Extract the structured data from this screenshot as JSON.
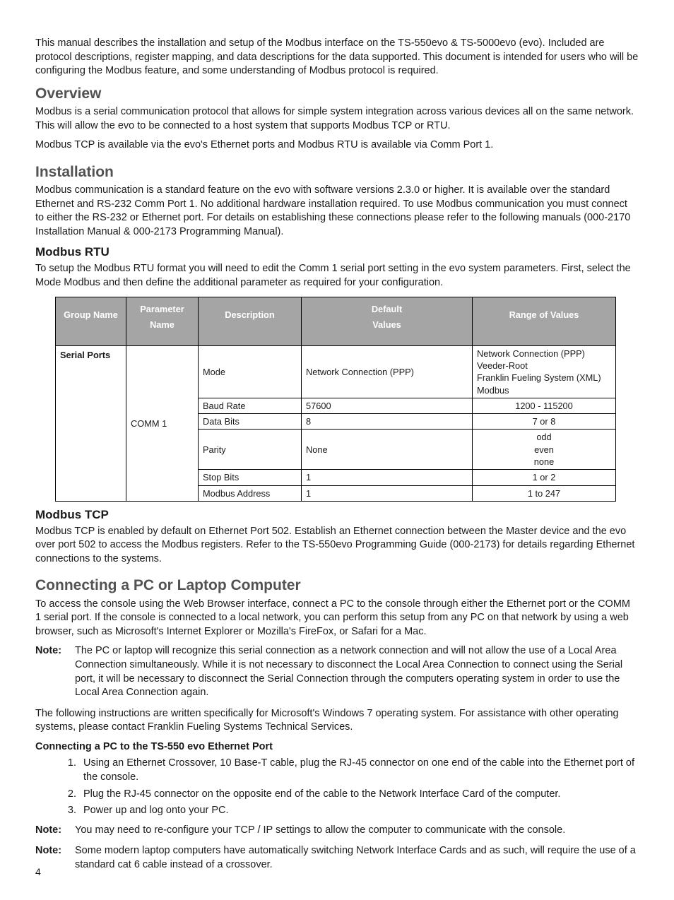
{
  "page_number": "4",
  "intro_para": "This manual describes the installation and setup of the Modbus interface on the TS-550evo & TS-5000evo (evo). Included are protocol descriptions, register mapping, and data descriptions for the data supported. This document is intended for users who will be configuring the Modbus feature, and some understanding of Modbus protocol is required.",
  "overview": {
    "heading": "Overview",
    "p1": "Modbus is a serial communication protocol that allows for simple system integration across various devices all on the same network. This will allow the evo to be connected to a host system that supports Modbus TCP or RTU.",
    "p2": "Modbus TCP is available via the evo's Ethernet ports and Modbus RTU is available via Comm Port 1."
  },
  "installation": {
    "heading": "Installation",
    "p1": "Modbus communication is a standard feature on the evo with software versions 2.3.0 or higher. It is available over the standard Ethernet and RS-232 Comm Port 1. No additional hardware installation required. To use Modbus communication you must connect to either the RS-232 or Ethernet port. For details on establishing these connections please refer to the following manuals (000-2170 Installation Manual & 000-2173 Programming Manual)."
  },
  "rtu": {
    "heading": "Modbus RTU",
    "p1": "To setup the Modbus RTU format you will need to edit the Comm 1 serial port setting in the evo system parameters. First, select the Mode Modbus and then define the additional parameter as required for your configuration."
  },
  "table": {
    "headers": {
      "c0": "Group Name",
      "c1_l1": "Parameter",
      "c1_l2": "Name",
      "c2": "Description",
      "c3_l1": "Default",
      "c3_l2": "Values",
      "c4": "Range of Values"
    },
    "group_name": "Serial Ports",
    "param_name": "COMM 1",
    "rows": {
      "r0": {
        "desc": "Mode",
        "def": "Network Connection (PPP)",
        "range_l1": "Network Connection (PPP)",
        "range_l2": "Veeder-Root",
        "range_l3": "Franklin Fueling System (XML)",
        "range_l4": "Modbus"
      },
      "r1": {
        "desc": "Baud Rate",
        "def": "57600",
        "range": "1200 - 115200"
      },
      "r2": {
        "desc": "Data Bits",
        "def": "8",
        "range": "7 or 8"
      },
      "r3": {
        "desc": "Parity",
        "def": "None",
        "range_l1": "odd",
        "range_l2": "even",
        "range_l3": "none"
      },
      "r4": {
        "desc": "Stop Bits",
        "def": "1",
        "range": "1 or 2"
      },
      "r5": {
        "desc": "Modbus Address",
        "def": "1",
        "range": "1 to 247"
      }
    }
  },
  "tcp": {
    "heading": "Modbus TCP",
    "p1": "Modbus TCP is enabled by default on Ethernet Port 502. Establish an Ethernet connection between the Master device and the evo over port 502 to access the Modbus registers. Refer to the TS-550evo Programming Guide (000-2173) for details regarding Ethernet connections to the systems."
  },
  "connecting": {
    "heading": "Connecting a PC or Laptop Computer",
    "p1": "To access the console using the Web Browser interface, connect a PC to the console through either the Ethernet port or the COMM 1 serial port. If the console is connected to a local network, you can perform this setup from any PC on that network by using a web browser, such as Microsoft's Internet Explorer or Mozilla's FireFox, or Safari for a Mac.",
    "note1_label": "Note:",
    "note1": "The PC or laptop will recognize this serial connection as a network connection and will not allow the use of a Local Area Connection simultaneously. While it is not necessary to disconnect the Local Area Connection to connect using the Serial port, it will be necessary to disconnect the Serial Connection through the computers operating system in order to use the Local Area Connection again.",
    "p2": "The following instructions are written specifically for Microsoft's Windows 7 operating system. For assistance with other operating systems, please contact Franklin Fueling Systems Technical Services.",
    "sub_heading": "Connecting a PC to the TS-550 evo Ethernet Port",
    "steps": {
      "s1": "Using an Ethernet Crossover, 10 Base-T cable, plug the RJ-45 connector on one end of the cable into the Ethernet port of the console.",
      "s2": "Plug the RJ-45 connector on the opposite end of the cable to the Network Interface Card of the computer.",
      "s3": "Power up and log onto your PC."
    },
    "note2_label": "Note:",
    "note2": "You may need to re-configure your TCP / IP settings to allow the computer to communicate with the console.",
    "note3_label": "Note:",
    "note3": "Some modern laptop computers have automatically switching Network Interface Cards and as such, will require the use of a standard cat 6 cable instead of a crossover."
  }
}
